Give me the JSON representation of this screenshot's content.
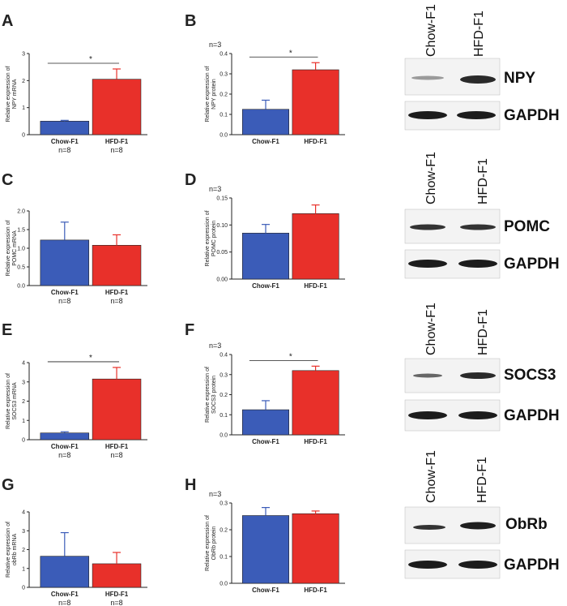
{
  "chart_data": [
    {
      "panel": "A",
      "type": "bar",
      "title": "",
      "xlabel": "",
      "ylabel": "Relative expression of NPY mRNA",
      "categories": [
        "Chow-F1",
        "HFD-F1"
      ],
      "category_n": [
        "n=8",
        "n=8"
      ],
      "values": [
        0.5,
        2.05
      ],
      "errors": [
        0.03,
        0.38
      ],
      "ylim": [
        0,
        3
      ],
      "yticks": [
        0,
        1,
        2,
        3
      ],
      "yticklabels": [
        "0",
        "1",
        "2",
        "3"
      ],
      "significance": "*",
      "n_label": ""
    },
    {
      "panel": "B",
      "type": "bar",
      "title": "",
      "xlabel": "",
      "ylabel": "Relative expression of NPY protein",
      "categories": [
        "Chow-F1",
        "HFD-F1"
      ],
      "category_n": [
        "",
        ""
      ],
      "values": [
        0.125,
        0.32
      ],
      "errors": [
        0.045,
        0.035
      ],
      "ylim": [
        0,
        0.4
      ],
      "yticks": [
        0,
        0.1,
        0.2,
        0.3,
        0.4
      ],
      "yticklabels": [
        "0.0",
        "0.1",
        "0.2",
        "0.3",
        "0.4"
      ],
      "significance": "*",
      "n_label": "n=3"
    },
    {
      "panel": "C",
      "type": "bar",
      "title": "",
      "xlabel": "",
      "ylabel": "Relative expression of POMC mRNA",
      "categories": [
        "Chow-F1",
        "HFD-F1"
      ],
      "category_n": [
        "n=8",
        "n=8"
      ],
      "values": [
        1.22,
        1.08
      ],
      "errors": [
        0.48,
        0.28
      ],
      "ylim": [
        0,
        2.0
      ],
      "yticks": [
        0,
        0.5,
        1.0,
        1.5,
        2.0
      ],
      "yticklabels": [
        "0.0",
        "0.5",
        "1.0",
        "1.5",
        "2.0"
      ],
      "significance": "",
      "n_label": ""
    },
    {
      "panel": "D",
      "type": "bar",
      "title": "",
      "xlabel": "",
      "ylabel": "Relative expression of POMC protein",
      "categories": [
        "Chow-F1",
        "HFD-F1"
      ],
      "category_n": [
        "",
        ""
      ],
      "values": [
        0.085,
        0.121
      ],
      "errors": [
        0.016,
        0.016
      ],
      "ylim": [
        0,
        0.15
      ],
      "yticks": [
        0,
        0.05,
        0.1,
        0.15
      ],
      "yticklabels": [
        "0.00",
        "0.05",
        "0.10",
        "0.15"
      ],
      "significance": "",
      "n_label": "n=3"
    },
    {
      "panel": "E",
      "type": "bar",
      "title": "",
      "xlabel": "",
      "ylabel": "Relative expression of SOCS3 mRNA",
      "categories": [
        "Chow-F1",
        "HFD-F1"
      ],
      "category_n": [
        "n=8",
        "n=8"
      ],
      "values": [
        0.35,
        3.15
      ],
      "errors": [
        0.06,
        0.6
      ],
      "ylim": [
        0,
        4
      ],
      "yticks": [
        0,
        1,
        2,
        3,
        4
      ],
      "yticklabels": [
        "0",
        "1",
        "2",
        "3",
        "4"
      ],
      "significance": "*",
      "n_label": ""
    },
    {
      "panel": "F",
      "type": "bar",
      "title": "",
      "xlabel": "",
      "ylabel": "Relative expression of SOCS3 protein",
      "categories": [
        "Chow-F1",
        "HFD-F1"
      ],
      "category_n": [
        "",
        ""
      ],
      "values": [
        0.125,
        0.32
      ],
      "errors": [
        0.045,
        0.022
      ],
      "ylim": [
        0,
        0.4
      ],
      "yticks": [
        0,
        0.1,
        0.2,
        0.3,
        0.4
      ],
      "yticklabels": [
        "0.0",
        "0.1",
        "0.2",
        "0.3",
        "0.4"
      ],
      "significance": "*",
      "n_label": "n=3"
    },
    {
      "panel": "G",
      "type": "bar",
      "title": "",
      "xlabel": "",
      "ylabel": "Relative expression of obRb mRNA",
      "categories": [
        "Chow-F1",
        "HFD-F1"
      ],
      "category_n": [
        "n=8",
        "n=8"
      ],
      "values": [
        1.65,
        1.25
      ],
      "errors": [
        1.25,
        0.6
      ],
      "ylim": [
        0,
        4
      ],
      "yticks": [
        0,
        1,
        2,
        3,
        4
      ],
      "yticklabels": [
        "0",
        "1",
        "2",
        "3",
        "4"
      ],
      "significance": "",
      "n_label": ""
    },
    {
      "panel": "H",
      "type": "bar",
      "title": "",
      "xlabel": "",
      "ylabel": "Relative expression of ObRb protein",
      "categories": [
        "Chow-F1",
        "HFD-F1"
      ],
      "category_n": [
        "",
        ""
      ],
      "values": [
        0.253,
        0.26
      ],
      "errors": [
        0.03,
        0.01
      ],
      "ylim": [
        0,
        0.3
      ],
      "yticks": [
        0,
        0.1,
        0.2,
        0.3
      ],
      "yticklabels": [
        "0.0",
        "0.1",
        "0.2",
        "0.3"
      ],
      "significance": "",
      "n_label": "n=3"
    }
  ],
  "colors": {
    "chow": "#3b5cb8",
    "hfd": "#e8302a",
    "axis": "#222222"
  },
  "blots": [
    {
      "header": [
        "Chow-F1",
        "HFD-F1"
      ],
      "target": "NPY",
      "loading": "GAPDH"
    },
    {
      "header": [
        "Chow-F1",
        "HFD-F1"
      ],
      "target": "POMC",
      "loading": "GAPDH"
    },
    {
      "header": [
        "Chow-F1",
        "HFD-F1"
      ],
      "target": "SOCS3",
      "loading": "GAPDH"
    },
    {
      "header": [
        "Chow-F1",
        "HFD-F1"
      ],
      "target": "ObRb",
      "loading": "GAPDH"
    }
  ]
}
